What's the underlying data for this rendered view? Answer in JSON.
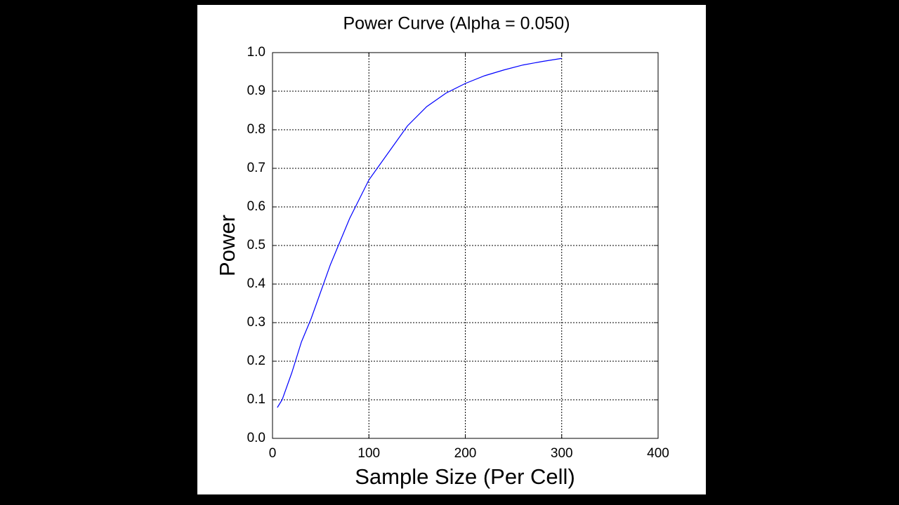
{
  "chart_data": {
    "type": "line",
    "title": "Power Curve (Alpha = 0.050)",
    "x_label": "Sample Size (Per Cell)",
    "y_label": "Power",
    "x": [
      5,
      10,
      20,
      30,
      40,
      50,
      60,
      70,
      80,
      90,
      100,
      120,
      140,
      160,
      180,
      200,
      220,
      240,
      260,
      280,
      300
    ],
    "values": [
      0.08,
      0.1,
      0.17,
      0.25,
      0.31,
      0.38,
      0.45,
      0.51,
      0.57,
      0.62,
      0.67,
      0.74,
      0.81,
      0.86,
      0.895,
      0.92,
      0.94,
      0.955,
      0.968,
      0.977,
      0.985
    ],
    "color": "#0000ff",
    "xlim": [
      0,
      400
    ],
    "xticks": [
      0,
      100,
      200,
      300,
      400
    ],
    "ylim": [
      0,
      1
    ],
    "yticks": [
      {
        "value": 0,
        "label": "0.0"
      },
      0.1,
      0.2,
      0.3,
      0.4,
      0.5,
      0.6,
      0.7,
      0.8,
      0.9,
      {
        "value": 1,
        "label": "1.0"
      }
    ],
    "grid": true
  }
}
